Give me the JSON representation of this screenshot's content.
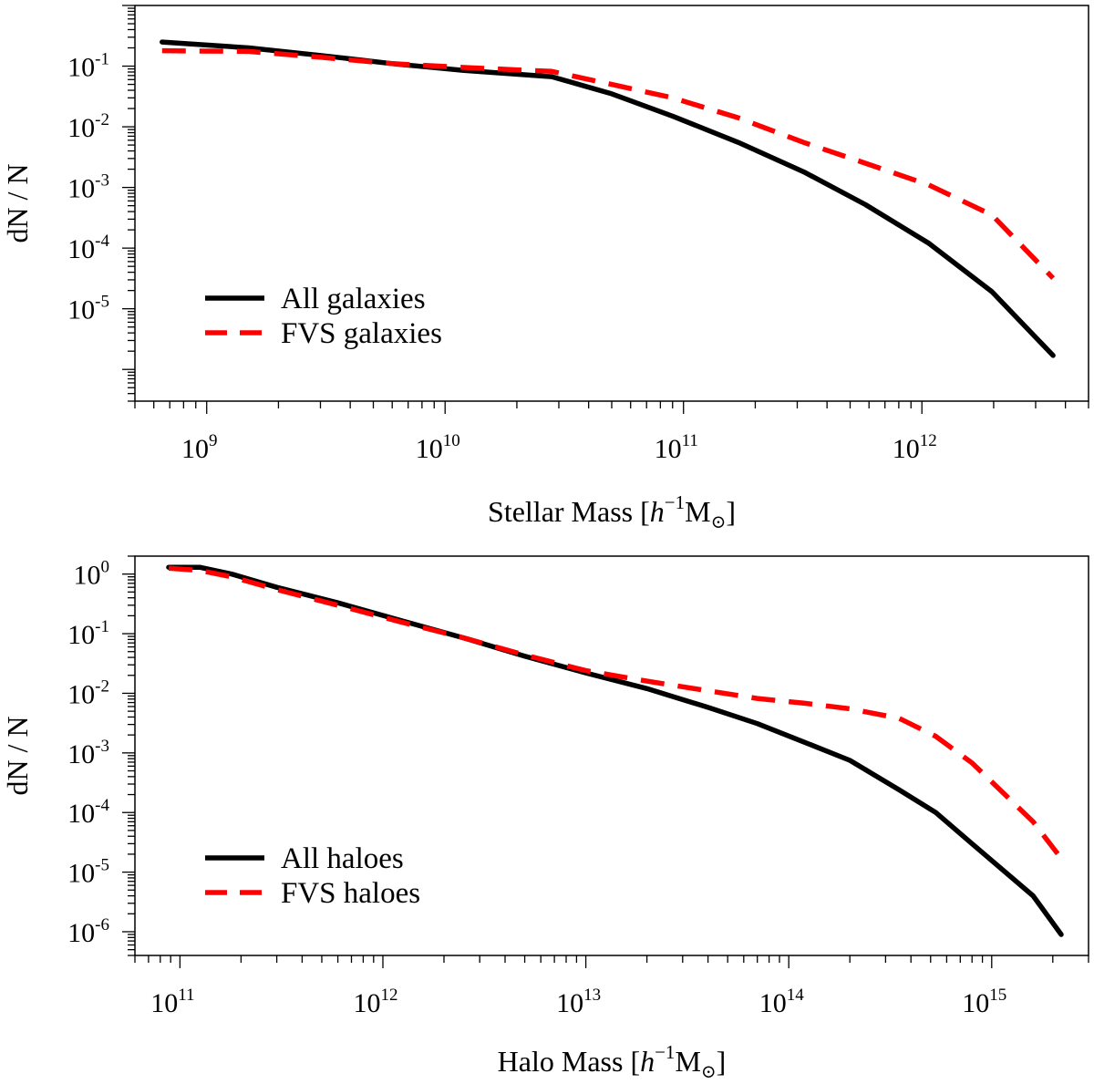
{
  "figure": {
    "colors": {
      "all": "#000000",
      "fvs": "#ff0000",
      "axes": "#000000",
      "background": "#ffffff"
    }
  },
  "chart_data": [
    {
      "type": "line",
      "xscale": "log",
      "yscale": "log",
      "xlim": [
        500000000.0,
        5000000000000.0
      ],
      "ylim": [
        3e-07,
        1.0
      ],
      "grid": false,
      "legend_position": "bottom-left",
      "xlabel": {
        "prefix": "Stellar Mass [",
        "h": "h",
        "exp": "−1",
        "unit": "M",
        "sun": "⊙",
        "suffix": "]"
      },
      "ylabel": "dN / N",
      "xticks": [
        {
          "value": 1000000000.0,
          "base": "10",
          "exp": "9"
        },
        {
          "value": 10000000000.0,
          "base": "10",
          "exp": "10"
        },
        {
          "value": 100000000000.0,
          "base": "10",
          "exp": "11"
        },
        {
          "value": 1000000000000.0,
          "base": "10",
          "exp": "12"
        }
      ],
      "yticks": [
        {
          "value": 1e-05,
          "base": "10",
          "exp": "-5"
        },
        {
          "value": 0.0001,
          "base": "10",
          "exp": "-4"
        },
        {
          "value": 0.001,
          "base": "10",
          "exp": "-3"
        },
        {
          "value": 0.01,
          "base": "10",
          "exp": "-2"
        },
        {
          "value": 0.1,
          "base": "10",
          "exp": "-1"
        }
      ],
      "series": [
        {
          "name": "All galaxies",
          "style": "solid",
          "color": "#000000",
          "x": [
            650000000.0,
            1500000000.0,
            3000000000.0,
            6000000000.0,
            12000000000.0,
            28000000000.0,
            50000000000.0,
            90000000000.0,
            170000000000.0,
            320000000000.0,
            580000000000.0,
            1070000000000.0,
            1970000000000.0,
            3550000000000.0
          ],
          "y": [
            0.25,
            0.2,
            0.15,
            0.11,
            0.085,
            0.067,
            0.035,
            0.015,
            0.0055,
            0.0018,
            0.00052,
            0.00012,
            1.9e-05,
            1.7e-06
          ]
        },
        {
          "name": "FVS galaxies",
          "style": "dashed",
          "color": "#ff0000",
          "x": [
            650000000.0,
            1500000000.0,
            3000000000.0,
            6000000000.0,
            12000000000.0,
            28000000000.0,
            50000000000.0,
            90000000000.0,
            170000000000.0,
            320000000000.0,
            580000000000.0,
            1070000000000.0,
            1970000000000.0,
            3550000000000.0
          ],
          "y": [
            0.18,
            0.175,
            0.14,
            0.11,
            0.095,
            0.082,
            0.05,
            0.03,
            0.014,
            0.0055,
            0.0025,
            0.0011,
            0.00035,
            3.2e-05
          ]
        }
      ]
    },
    {
      "type": "line",
      "xscale": "log",
      "yscale": "log",
      "xlim": [
        60000000000.0,
        3000000000000000.0
      ],
      "ylim": [
        4e-07,
        2.0
      ],
      "grid": false,
      "legend_position": "bottom-left",
      "xlabel": {
        "prefix": "Halo Mass [",
        "h": "h",
        "exp": "−1",
        "unit": "M",
        "sun": "⊙",
        "suffix": "]"
      },
      "ylabel": "dN / N",
      "xticks": [
        {
          "value": 100000000000.0,
          "base": "10",
          "exp": "11"
        },
        {
          "value": 1000000000000.0,
          "base": "10",
          "exp": "12"
        },
        {
          "value": 10000000000000.0,
          "base": "10",
          "exp": "13"
        },
        {
          "value": 100000000000000.0,
          "base": "10",
          "exp": "14"
        },
        {
          "value": 1000000000000000.0,
          "base": "10",
          "exp": "15"
        }
      ],
      "yticks": [
        {
          "value": 1e-06,
          "base": "10",
          "exp": "-6"
        },
        {
          "value": 1e-05,
          "base": "10",
          "exp": "-5"
        },
        {
          "value": 0.0001,
          "base": "10",
          "exp": "-4"
        },
        {
          "value": 0.001,
          "base": "10",
          "exp": "-3"
        },
        {
          "value": 0.01,
          "base": "10",
          "exp": "-2"
        },
        {
          "value": 0.1,
          "base": "10",
          "exp": "-1"
        },
        {
          "value": 1.0,
          "base": "10",
          "exp": "0"
        }
      ],
      "series": [
        {
          "name": "All haloes",
          "style": "solid",
          "color": "#000000",
          "x": [
            88000000000.0,
            125000000000.0,
            180000000000.0,
            300000000000.0,
            600000000000.0,
            1200000000000.0,
            2500000000000.0,
            5000000000000.0,
            10000000000000.0,
            20000000000000.0,
            40000000000000.0,
            70000000000000.0,
            120000000000000.0,
            200000000000000.0,
            350000000000000.0,
            530000000000000.0,
            800000000000000.0,
            1600000000000000.0,
            2200000000000000.0
          ],
          "y": [
            1.3,
            1.3,
            1.0,
            0.6,
            0.33,
            0.17,
            0.085,
            0.042,
            0.022,
            0.012,
            0.0058,
            0.0031,
            0.0015,
            0.00075,
            0.00024,
            0.0001,
            3e-05,
            4e-06,
            9e-07
          ]
        },
        {
          "name": "FVS haloes",
          "style": "dashed",
          "color": "#ff0000",
          "x": [
            88000000000.0,
            125000000000.0,
            180000000000.0,
            300000000000.0,
            600000000000.0,
            1200000000000.0,
            2500000000000.0,
            5000000000000.0,
            10000000000000.0,
            20000000000000.0,
            40000000000000.0,
            70000000000000.0,
            120000000000000.0,
            200000000000000.0,
            350000000000000.0,
            530000000000000.0,
            800000000000000.0,
            1600000000000000.0,
            2200000000000000.0
          ],
          "y": [
            1.25,
            1.15,
            0.9,
            0.55,
            0.3,
            0.16,
            0.085,
            0.044,
            0.024,
            0.016,
            0.011,
            0.0082,
            0.0068,
            0.0055,
            0.0038,
            0.0019,
            0.00068,
            7e-05,
            1.7e-05
          ]
        }
      ]
    }
  ]
}
